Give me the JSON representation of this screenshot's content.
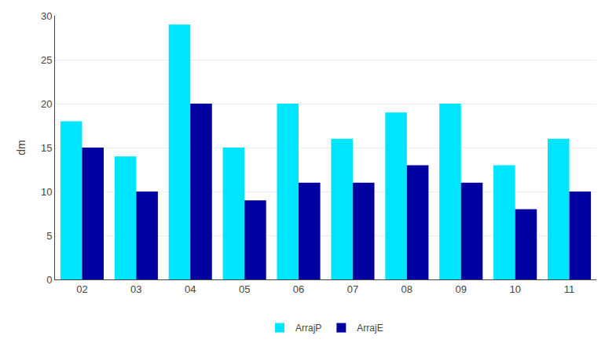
{
  "chart_data": {
    "type": "bar",
    "categories": [
      "02",
      "03",
      "04",
      "05",
      "06",
      "07",
      "08",
      "09",
      "10",
      "11"
    ],
    "series": [
      {
        "name": "ArrajP",
        "color": "#00E5FF",
        "values": [
          18,
          14,
          29,
          15,
          20,
          16,
          19,
          20,
          13,
          16
        ]
      },
      {
        "name": "ArrajE",
        "color": "#0000A0",
        "values": [
          15,
          10,
          20,
          9,
          11,
          11,
          13,
          11,
          8,
          10
        ]
      }
    ],
    "ylabel": "dm",
    "ylim": [
      0,
      30
    ],
    "yticks": [
      0,
      5,
      10,
      15,
      20,
      25,
      30
    ],
    "grid": true,
    "legend": "bottom"
  }
}
